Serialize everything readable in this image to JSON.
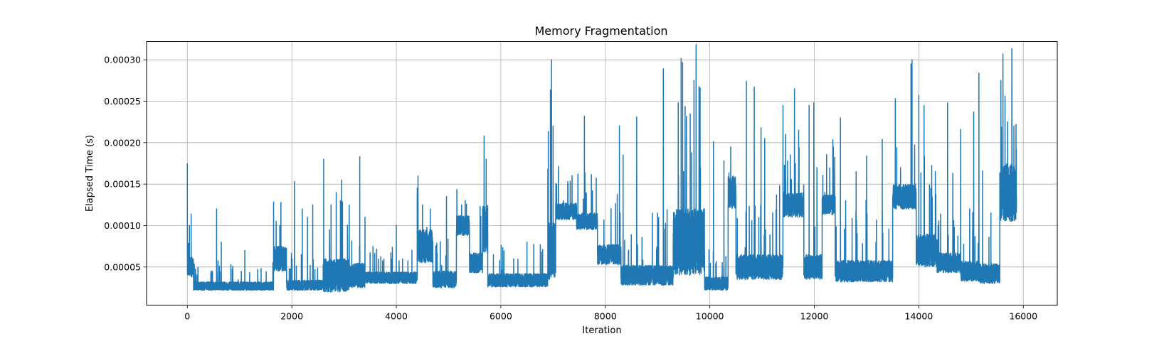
{
  "chart_data": {
    "type": "line",
    "title": "Memory Fragmentation",
    "xlabel": "Iteration",
    "ylabel": "Elapsed Time (s)",
    "xlim": [
      -780,
      16650
    ],
    "ylim": [
      4e-06,
      0.000322
    ],
    "xticks": [
      0,
      2000,
      4000,
      6000,
      8000,
      10000,
      12000,
      14000,
      16000
    ],
    "yticks": [
      5e-05,
      0.0001,
      0.00015,
      0.0002,
      0.00025,
      0.0003
    ],
    "ytick_format": 5,
    "grid": true,
    "color": "#1f77b4",
    "series": [
      {
        "n_points": 15870,
        "segments": [
          [
            0,
            120,
            5e-05,
            1.2e-05
          ],
          [
            120,
            1650,
            2.7e-05,
            5e-06
          ],
          [
            1650,
            1900,
            6e-05,
            1.5e-05
          ],
          [
            1900,
            2600,
            2.8e-05,
            6e-06
          ],
          [
            2600,
            3100,
            4e-05,
            2e-05
          ],
          [
            3100,
            3400,
            4e-05,
            1.5e-05
          ],
          [
            3400,
            4400,
            3.7e-05,
            7e-06
          ],
          [
            4400,
            4700,
            7.5e-05,
            2e-05
          ],
          [
            4700,
            5150,
            3.5e-05,
            1e-05
          ],
          [
            5150,
            5400,
            0.0001,
            1.2e-05
          ],
          [
            5400,
            5650,
            5.5e-05,
            1.2e-05
          ],
          [
            5650,
            5750,
            9.5e-05,
            3e-05
          ],
          [
            5750,
            6900,
            3.4e-05,
            8e-06
          ],
          [
            6900,
            7050,
            7e-05,
            3.5e-05
          ],
          [
            7050,
            7450,
            0.000117,
            1e-05
          ],
          [
            7450,
            7850,
            0.000105,
            1e-05
          ],
          [
            7850,
            8300,
            6.5e-05,
            1.2e-05
          ],
          [
            8300,
            9300,
            4e-05,
            1.2e-05
          ],
          [
            9300,
            9900,
            8e-05,
            4e-05
          ],
          [
            9900,
            10350,
            3e-05,
            8e-06
          ],
          [
            10350,
            10500,
            0.00014,
            2e-05
          ],
          [
            10500,
            11400,
            5e-05,
            1.5e-05
          ],
          [
            11400,
            11800,
            0.000125,
            1.5e-05
          ],
          [
            11800,
            12150,
            5e-05,
            1.5e-05
          ],
          [
            12150,
            12400,
            0.000125,
            1.2e-05
          ],
          [
            12400,
            13500,
            4.5e-05,
            1.3e-05
          ],
          [
            13500,
            13950,
            0.000135,
            1.5e-05
          ],
          [
            13950,
            14350,
            7e-05,
            2e-05
          ],
          [
            14350,
            14800,
            5.5e-05,
            1.2e-05
          ],
          [
            14800,
            15150,
            4.5e-05,
            1.2e-05
          ],
          [
            15150,
            15550,
            4.2e-05,
            1.2e-05
          ],
          [
            15550,
            15870,
            0.00014,
            3.5e-05
          ]
        ],
        "spikes": [
          [
            0,
            0.000175
          ],
          [
            40,
            0.0001
          ],
          [
            560,
            0.00012
          ],
          [
            650,
            8e-05
          ],
          [
            1100,
            7e-05
          ],
          [
            1700,
            0.000105
          ],
          [
            1770,
            0.0001
          ],
          [
            2050,
            0.000153
          ],
          [
            2200,
            0.00012
          ],
          [
            2300,
            0.00011
          ],
          [
            2400,
            0.000125
          ],
          [
            2610,
            0.00018
          ],
          [
            2750,
            0.000125
          ],
          [
            2850,
            0.00014
          ],
          [
            2950,
            0.000155
          ],
          [
            3300,
            0.000183
          ],
          [
            3400,
            0.00011
          ],
          [
            4000,
            0.0001
          ],
          [
            4500,
            0.000125
          ],
          [
            4650,
            0.00012
          ],
          [
            4960,
            0.000135
          ],
          [
            5250,
            0.000125
          ],
          [
            5680,
            0.000208
          ],
          [
            5720,
            0.00018
          ],
          [
            6500,
            8e-05
          ],
          [
            6900,
            0.000168
          ],
          [
            6970,
            0.0003
          ],
          [
            7000,
            0.00022
          ],
          [
            7200,
            0.00013
          ],
          [
            7600,
            0.000232
          ],
          [
            8270,
            0.00022
          ],
          [
            8340,
            0.000185
          ],
          [
            8600,
            0.000231
          ],
          [
            8900,
            0.000115
          ],
          [
            9000,
            0.000115
          ],
          [
            9110,
            0.000289
          ],
          [
            9400,
            0.00016
          ],
          [
            9500,
            0.000165
          ],
          [
            9650,
            0.000188
          ],
          [
            9820,
            0.00017
          ],
          [
            10070,
            0.000201
          ],
          [
            10270,
            0.000178
          ],
          [
            10400,
            0.000195
          ],
          [
            10700,
            0.000274
          ],
          [
            10850,
            0.000267
          ],
          [
            10980,
            0.000218
          ],
          [
            11050,
            0.000205
          ],
          [
            11400,
            0.000245
          ],
          [
            11450,
            0.00021
          ],
          [
            11620,
            0.000265
          ],
          [
            11700,
            0.000215
          ],
          [
            11900,
            0.000245
          ],
          [
            11990,
            0.000248
          ],
          [
            12050,
            0.00017
          ],
          [
            12200,
            0.00014
          ],
          [
            12500,
            0.00023
          ],
          [
            12600,
            0.00013
          ],
          [
            12800,
            0.000165
          ],
          [
            13000,
            0.000184
          ],
          [
            13300,
            0.000204
          ],
          [
            13550,
            0.000253
          ],
          [
            13650,
            0.00017
          ],
          [
            13850,
            0.000295
          ],
          [
            13870,
            0.0003
          ],
          [
            14000,
            0.000257
          ],
          [
            14100,
            0.000245
          ],
          [
            14230,
            0.000145
          ],
          [
            14550,
            0.000248
          ],
          [
            14650,
            0.000163
          ],
          [
            14800,
            0.000216
          ],
          [
            15050,
            0.000237
          ],
          [
            15150,
            0.000284
          ],
          [
            15220,
            0.000166
          ],
          [
            15380,
            0.000115
          ],
          [
            15570,
            0.000275
          ],
          [
            15610,
            0.000307
          ],
          [
            15650,
            0.000256
          ],
          [
            15700,
            0.000225
          ],
          [
            15820,
            0.00022
          ],
          [
            15860,
            0.000222
          ]
        ]
      }
    ]
  }
}
